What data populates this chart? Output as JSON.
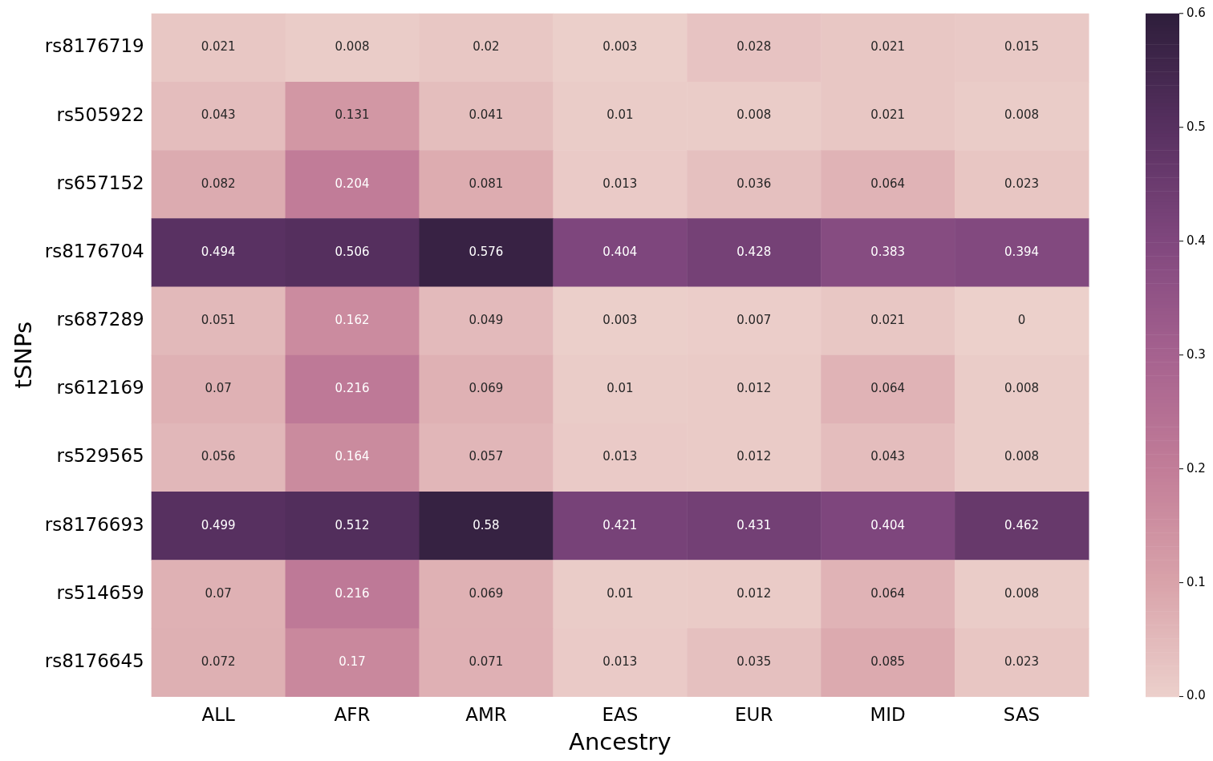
{
  "chart_data": {
    "type": "heatmap",
    "xlabel": "Ancestry",
    "ylabel": "tSNPs",
    "categories": [
      "ALL",
      "AFR",
      "AMR",
      "EAS",
      "EUR",
      "MID",
      "SAS"
    ],
    "y_categories": [
      "rs8176719",
      "rs505922",
      "rs657152",
      "rs8176704",
      "rs687289",
      "rs612169",
      "rs529565",
      "rs8176693",
      "rs514659",
      "rs8176645"
    ],
    "cells": [
      [
        0.021,
        0.008,
        0.02,
        0.003,
        0.028,
        0.021,
        0.015
      ],
      [
        0.043,
        0.131,
        0.041,
        0.01,
        0.008,
        0.021,
        0.008
      ],
      [
        0.082,
        0.204,
        0.081,
        0.013,
        0.036,
        0.064,
        0.023
      ],
      [
        0.494,
        0.506,
        0.576,
        0.404,
        0.428,
        0.383,
        0.394
      ],
      [
        0.051,
        0.162,
        0.049,
        0.003,
        0.007,
        0.021,
        0
      ],
      [
        0.07,
        0.216,
        0.069,
        0.01,
        0.012,
        0.064,
        0.008
      ],
      [
        0.056,
        0.164,
        0.057,
        0.013,
        0.012,
        0.043,
        0.008
      ],
      [
        0.499,
        0.512,
        0.58,
        0.421,
        0.431,
        0.404,
        0.462
      ],
      [
        0.07,
        0.216,
        0.069,
        0.01,
        0.012,
        0.064,
        0.008
      ],
      [
        0.072,
        0.17,
        0.071,
        0.013,
        0.035,
        0.085,
        0.023
      ]
    ],
    "data_labels": true,
    "clim": [
      0,
      0.6
    ],
    "cticks": [
      {
        "value": 0,
        "label": "0.0"
      },
      {
        "value": 0.1,
        "label": "0.1"
      },
      {
        "value": 0.2,
        "label": "0.2"
      },
      {
        "value": 0.3,
        "label": "0.3"
      },
      {
        "value": 0.4,
        "label": "0.4"
      },
      {
        "value": 0.5,
        "label": "0.5"
      },
      {
        "value": 0.6,
        "label": "0.6"
      }
    ]
  }
}
